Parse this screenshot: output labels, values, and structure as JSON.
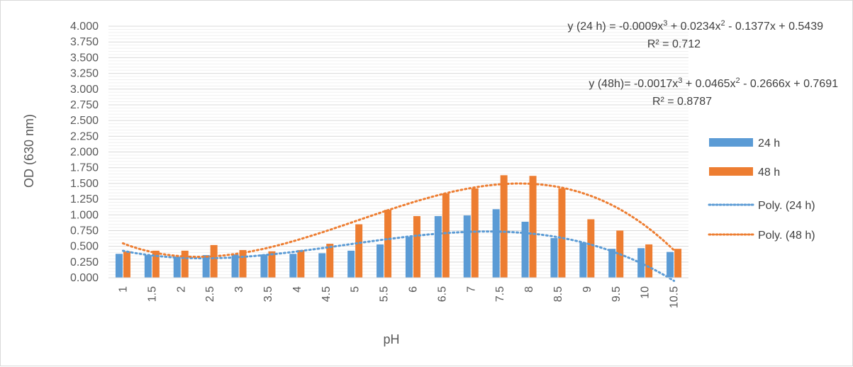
{
  "chart_data": {
    "type": "bar",
    "xlabel": "pH",
    "ylabel": "OD (630 nm)",
    "ylim": [
      0,
      4
    ],
    "yticks": [
      "0.000",
      "0.250",
      "0.500",
      "0.750",
      "1.000",
      "1.250",
      "1.500",
      "1.750",
      "2.000",
      "2.250",
      "2.500",
      "2.750",
      "3.000",
      "3.250",
      "3.500",
      "3.750",
      "4.000"
    ],
    "categories": [
      "1",
      "1.5",
      "2",
      "2.5",
      "3",
      "3.5",
      "4",
      "4.5",
      "5",
      "5.5",
      "6",
      "6.5",
      "7",
      "7.5",
      "8",
      "8.5",
      "9",
      "9.5",
      "10",
      "10.5"
    ],
    "grid": true,
    "legend_position": "right",
    "series": [
      {
        "name": "24 h",
        "color": "#5b9bd5",
        "values": [
          0.38,
          0.36,
          0.33,
          0.36,
          0.37,
          0.37,
          0.38,
          0.39,
          0.43,
          0.53,
          0.65,
          0.98,
          0.99,
          1.09,
          0.89,
          0.63,
          0.56,
          0.46,
          0.47,
          0.41
        ]
      },
      {
        "name": "48 h",
        "color": "#ed7d31",
        "values": [
          0.42,
          0.43,
          0.43,
          0.52,
          0.44,
          0.42,
          0.44,
          0.54,
          0.85,
          1.08,
          0.98,
          1.34,
          1.42,
          1.63,
          1.62,
          1.42,
          0.93,
          0.75,
          0.53,
          0.46
        ]
      }
    ],
    "trendlines": [
      {
        "name": "Poly. (24 h)",
        "color": "#5b9bd5",
        "coefficients": [
          -0.0009,
          0.0234,
          -0.1377,
          0.5439
        ]
      },
      {
        "name": "Poly. (48 h)",
        "color": "#ed7d31",
        "coefficients": [
          -0.0017,
          0.0465,
          -0.2666,
          0.7691
        ]
      }
    ],
    "annotations": {
      "eq24_prefix": "y (24 h) = -0.0009x",
      "eq24_mid": " + 0.0234x",
      "eq24_suffix": " - 0.1377x + 0.5439",
      "r2_24": "R² = 0.712",
      "eq48_prefix": "y (48h)= -0.0017x",
      "eq48_mid": " + 0.0465x",
      "eq48_suffix": " - 0.2666x + 0.7691",
      "r2_48": "R² = 0.8787",
      "sup3": "3",
      "sup2": "2"
    }
  }
}
